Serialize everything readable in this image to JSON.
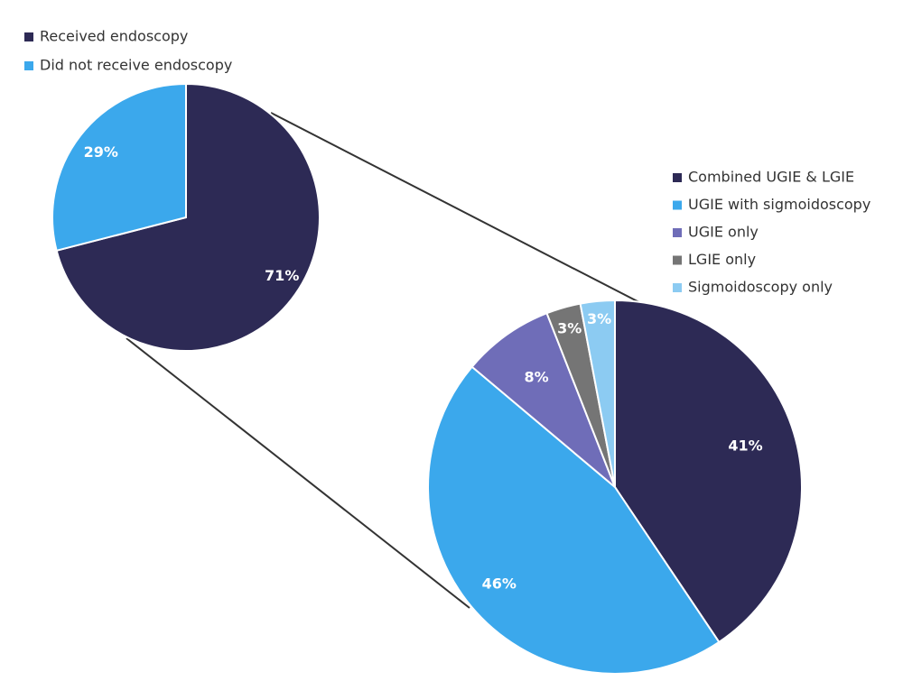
{
  "chart_data": [
    {
      "type": "pie",
      "title": "",
      "legend_position": "top-left",
      "slices": [
        {
          "label": "Received endoscopy",
          "value": 71,
          "value_label": "71%",
          "color": "#2D2A55"
        },
        {
          "label": "Did not receive endoscopy",
          "value": 29,
          "value_label": "29%",
          "color": "#3BA8EC"
        }
      ]
    },
    {
      "type": "pie",
      "title": "",
      "legend_position": "top-right",
      "breakdown_of": "Received endoscopy",
      "slices": [
        {
          "label": "Combined UGIE & LGIE",
          "value": 41,
          "value_label": "41%",
          "color": "#2D2A55"
        },
        {
          "label": "UGIE with sigmoidoscopy",
          "value": 46,
          "value_label": "46%",
          "color": "#3BA8EC"
        },
        {
          "label": "UGIE only",
          "value": 8,
          "value_label": "8%",
          "color": "#6F6DB8"
        },
        {
          "label": "LGIE only",
          "value": 3,
          "value_label": "3%",
          "color": "#757575"
        },
        {
          "label": "Sigmoidoscopy only",
          "value": 3,
          "value_label": "3%",
          "color": "#8CCBF2"
        }
      ]
    }
  ],
  "connector_color": "#333333"
}
